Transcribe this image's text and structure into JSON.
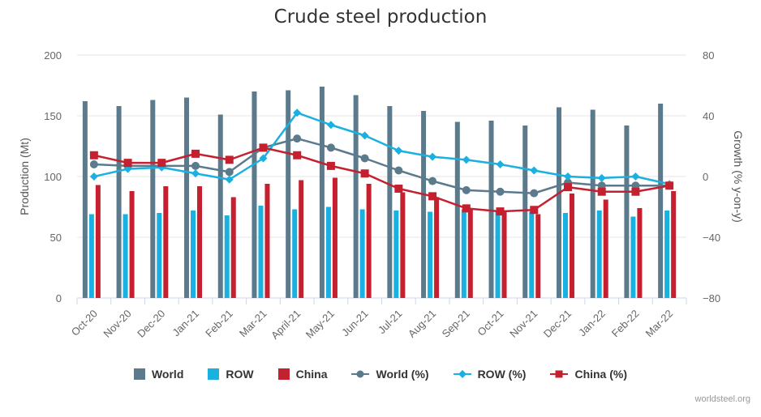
{
  "credit": "worldsteel.org",
  "colors": {
    "world": "#5b7a8c",
    "row": "#1ab0e0",
    "china": "#c4202f"
  },
  "chart_data": {
    "type": "bar+line",
    "title": "Crude steel production",
    "categories": [
      "Oct-20",
      "Nov-20",
      "Dec-20",
      "Jan-21",
      "Feb-21",
      "Mar-21",
      "April-21",
      "May-21",
      "Jun-21",
      "Jul-21",
      "Aug-21",
      "Sep-21",
      "Oct-21",
      "Nov-21",
      "Dec-21",
      "Jan-22",
      "Feb-22",
      "Mar-22"
    ],
    "ylabel_left": "Production (Mt)",
    "ylabel_right": "Growth (% y-on-y)",
    "ylim_left": [
      0,
      200
    ],
    "ylim_right": [
      -80,
      80
    ],
    "yticks_left": [
      "0",
      "50",
      "100",
      "150",
      "200"
    ],
    "yticks_right": [
      "−80",
      "−40",
      "0",
      "40",
      "80"
    ],
    "bar_series": [
      {
        "name": "World",
        "values": [
          162,
          158,
          163,
          165,
          151,
          170,
          171,
          174,
          167,
          158,
          154,
          145,
          146,
          142,
          157,
          155,
          142,
          160
        ]
      },
      {
        "name": "ROW",
        "values": [
          69,
          69,
          70,
          72,
          68,
          76,
          73,
          75,
          73,
          72,
          71,
          73,
          72,
          71,
          70,
          72,
          67,
          72
        ]
      },
      {
        "name": "China",
        "values": [
          93,
          88,
          92,
          92,
          83,
          94,
          97,
          99,
          94,
          87,
          83,
          74,
          71,
          69,
          86,
          81,
          74,
          88
        ]
      }
    ],
    "line_series": [
      {
        "name": "World (%)",
        "values": [
          8,
          7,
          7,
          7,
          3,
          19,
          25,
          19,
          12,
          4,
          -3,
          -9,
          -10,
          -11,
          -4,
          -6,
          -6,
          -6
        ]
      },
      {
        "name": "ROW (%)",
        "values": [
          0,
          5,
          6,
          2,
          -2,
          12,
          42,
          34,
          27,
          17,
          13,
          11,
          8,
          4,
          0,
          -1,
          0,
          -5
        ]
      },
      {
        "name": "China (%)",
        "values": [
          14,
          9,
          9,
          15,
          11,
          19,
          14,
          7,
          2,
          -8,
          -13,
          -21,
          -23,
          -22,
          -7,
          -10,
          -10,
          -6
        ]
      }
    ],
    "legend": [
      "World",
      "ROW",
      "China",
      "World (%)",
      "ROW (%)",
      "China (%)"
    ],
    "legend_position": "bottom",
    "grid": true
  }
}
